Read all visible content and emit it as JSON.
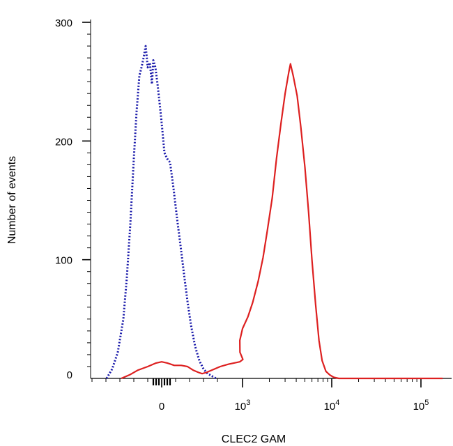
{
  "chart_data": {
    "type": "line",
    "title": "",
    "xlabel": "CLEC2 GAM",
    "ylabel": "Number of events",
    "x_scale": "biexponential",
    "x_range": [
      -500,
      180000
    ],
    "ylim": [
      0,
      305
    ],
    "y_ticks": [
      0,
      100,
      200,
      300
    ],
    "x_ticks": [
      {
        "value": 0,
        "base": "0",
        "exp": ""
      },
      {
        "value": 1000,
        "base": "10",
        "exp": "3"
      },
      {
        "value": 10000,
        "base": "10",
        "exp": "4"
      },
      {
        "value": 100000,
        "base": "10",
        "exp": "5"
      }
    ],
    "grid": false,
    "legend": "none",
    "series": [
      {
        "color": "#1a1aaa",
        "style": "dotted",
        "points": [
          [
            -395,
            0
          ],
          [
            -355,
            8
          ],
          [
            -315,
            22
          ],
          [
            -275,
            50
          ],
          [
            -250,
            85
          ],
          [
            -225,
            130
          ],
          [
            -200,
            185
          ],
          [
            -180,
            225
          ],
          [
            -160,
            255
          ],
          [
            -145,
            262
          ],
          [
            -130,
            270
          ],
          [
            -115,
            280
          ],
          [
            -100,
            262
          ],
          [
            -85,
            266
          ],
          [
            -70,
            248
          ],
          [
            -60,
            268
          ],
          [
            -45,
            262
          ],
          [
            -30,
            248
          ],
          [
            -15,
            232
          ],
          [
            0,
            215
          ],
          [
            20,
            190
          ],
          [
            40,
            185
          ],
          [
            60,
            182
          ],
          [
            85,
            160
          ],
          [
            110,
            135
          ],
          [
            135,
            112
          ],
          [
            160,
            88
          ],
          [
            185,
            65
          ],
          [
            210,
            45
          ],
          [
            240,
            27
          ],
          [
            270,
            15
          ],
          [
            300,
            8
          ],
          [
            330,
            4
          ],
          [
            360,
            2
          ],
          [
            390,
            0
          ]
        ]
      },
      {
        "color": "#dd2020",
        "style": "solid",
        "points": [
          [
            -290,
            0
          ],
          [
            -230,
            3
          ],
          [
            -170,
            7
          ],
          [
            -100,
            10
          ],
          [
            -40,
            13
          ],
          [
            0,
            14
          ],
          [
            40,
            13
          ],
          [
            90,
            11
          ],
          [
            140,
            11
          ],
          [
            185,
            10
          ],
          [
            225,
            7
          ],
          [
            265,
            5
          ],
          [
            290,
            4
          ],
          [
            320,
            5
          ],
          [
            360,
            7
          ],
          [
            420,
            10
          ],
          [
            480,
            12
          ],
          [
            560,
            14
          ],
          [
            650,
            16
          ],
          [
            760,
            22
          ],
          [
            870,
            32
          ],
          [
            1000,
            42
          ],
          [
            1150,
            52
          ],
          [
            1300,
            64
          ],
          [
            1500,
            82
          ],
          [
            1700,
            102
          ],
          [
            1900,
            125
          ],
          [
            2150,
            152
          ],
          [
            2400,
            185
          ],
          [
            2700,
            215
          ],
          [
            3000,
            240
          ],
          [
            3300,
            258
          ],
          [
            3450,
            265
          ],
          [
            3700,
            255
          ],
          [
            4100,
            238
          ],
          [
            4500,
            212
          ],
          [
            5000,
            178
          ],
          [
            5500,
            140
          ],
          [
            6000,
            100
          ],
          [
            6600,
            62
          ],
          [
            7200,
            32
          ],
          [
            7800,
            15
          ],
          [
            8600,
            6
          ],
          [
            9500,
            3
          ],
          [
            10500,
            1
          ],
          [
            12000,
            0
          ],
          [
            20000,
            0
          ],
          [
            60000,
            0
          ],
          [
            175000,
            0
          ]
        ]
      }
    ]
  }
}
